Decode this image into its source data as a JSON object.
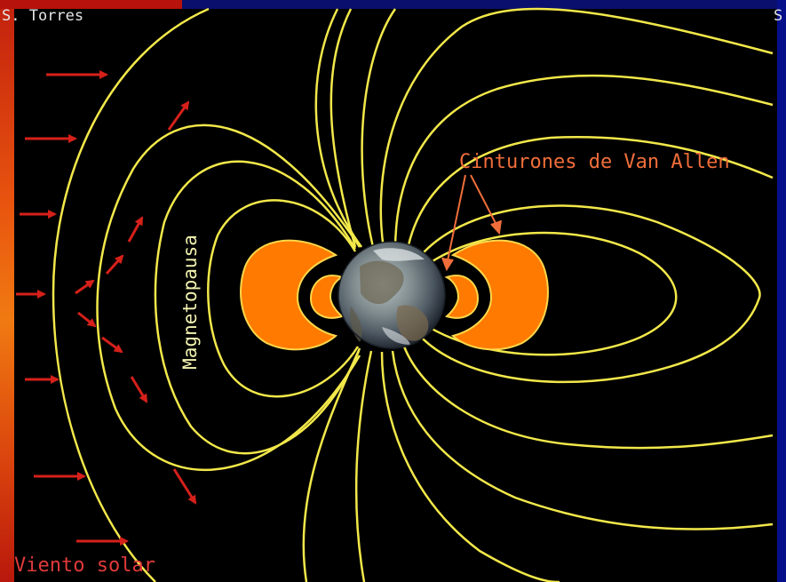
{
  "labels": {
    "credit": "S. Torres",
    "credit_right": "S",
    "van_allen": "Cinturones de Van Allen",
    "magnetopause": "Magnetopausa",
    "solar_wind": "Viento solar"
  },
  "colors": {
    "background": "#000000",
    "field_lines": "#f2e84a",
    "belts": "#ff7a00",
    "belt_outline": "#ffd84a",
    "solar_wind_arrows": "#d6201a",
    "van_allen_text": "#f06e3a",
    "frame_blue": "#0a0f6e",
    "sun_red": "#c2200e"
  },
  "icons": {
    "earth": "earth-globe-icon",
    "arrow": "red-arrow-icon"
  }
}
